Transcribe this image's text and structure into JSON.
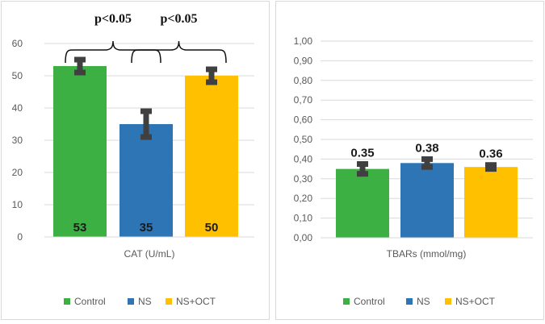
{
  "colors": {
    "control": "#3cb043",
    "ns": "#2e75b6",
    "ns_oct": "#ffc000",
    "error": "#404040",
    "grid": "#d9d9d9"
  },
  "legend": [
    {
      "label": "Control",
      "color_key": "control"
    },
    {
      "label": "NS",
      "color_key": "ns"
    },
    {
      "label": "NS+OCT",
      "color_key": "ns_oct"
    }
  ],
  "chart_data": [
    {
      "type": "bar",
      "categories": [
        "Control",
        "NS",
        "NS+OCT"
      ],
      "values": [
        53,
        35,
        50
      ],
      "errors": [
        2,
        4,
        2
      ],
      "value_labels": [
        "53",
        "35",
        "50"
      ],
      "xlabel": "CAT (U/mL)",
      "ylim": [
        0,
        60
      ],
      "yticks": [
        "0",
        "10",
        "20",
        "30",
        "40",
        "50",
        "60"
      ],
      "significance": [
        {
          "from": 0,
          "to": 1,
          "label": "p<0.05"
        },
        {
          "from": 1,
          "to": 2,
          "label": "p<0.05"
        }
      ]
    },
    {
      "type": "bar",
      "categories": [
        "Control",
        "NS",
        "NS+OCT"
      ],
      "values": [
        0.35,
        0.38,
        0.36
      ],
      "errors": [
        0.025,
        0.02,
        0.01
      ],
      "value_labels": [
        "0.35",
        "0.38",
        "0.36"
      ],
      "xlabel": "TBARs (mmol/mg)",
      "ylim": [
        0,
        1
      ],
      "yticks": [
        "0,00",
        "0,10",
        "0,20",
        "0,30",
        "0,40",
        "0,50",
        "0,60",
        "0,70",
        "0,80",
        "0,90",
        "1,00"
      ]
    }
  ]
}
